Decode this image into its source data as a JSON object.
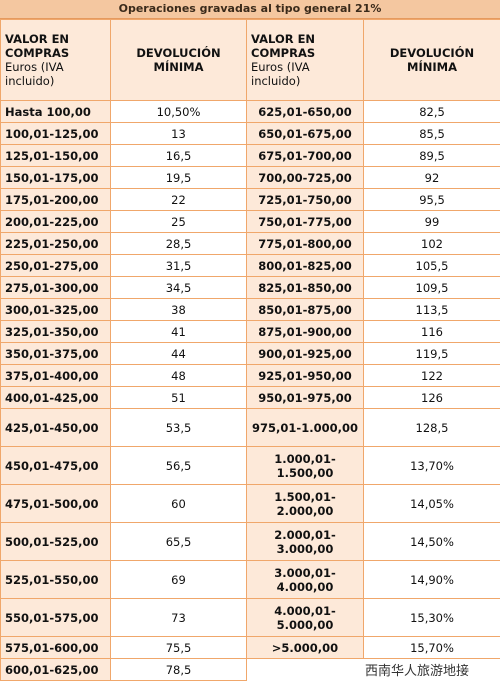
{
  "title": "Operaciones gravadas al tipo general 21%",
  "header": [
    {
      "label": "VALOR EN COMPRAS",
      "note": "Euros (IVA incluido)"
    },
    {
      "label": "DEVOLUCIÓN MÍNIMA"
    },
    {
      "label": "VALOR EN COMPRAS",
      "note": "Euros (IVA incluido)"
    },
    {
      "label": "DEVOLUCIÓN MÍNIMA"
    }
  ],
  "rows": [
    [
      "Hasta 100,00",
      "10,50%",
      "625,01-650,00",
      "82,5"
    ],
    [
      "100,01-125,00",
      "13",
      "650,01-675,00",
      "85,5"
    ],
    [
      "125,01-150,00",
      "16,5",
      "675,01-700,00",
      "89,5"
    ],
    [
      "150,01-175,00",
      "19,5",
      "700,00-725,00",
      "92"
    ],
    [
      "175,01-200,00",
      "22",
      "725,01-750,00",
      "95,5"
    ],
    [
      "200,01-225,00",
      "25",
      "750,01-775,00",
      "99"
    ],
    [
      "225,01-250,00",
      "28,5",
      "775,01-800,00",
      "102"
    ],
    [
      "250,01-275,00",
      "31,5",
      "800,01-825,00",
      "105,5"
    ],
    [
      "275,01-300,00",
      "34,5",
      "825,01-850,00",
      "109,5"
    ],
    [
      "300,01-325,00",
      "38",
      "850,01-875,00",
      "113,5"
    ],
    [
      "325,01-350,00",
      "41",
      "875,01-900,00",
      "116"
    ],
    [
      "350,01-375,00",
      "44",
      "900,01-925,00",
      "119,5"
    ],
    [
      "375,01-400,00",
      "48",
      "925,01-950,00",
      "122"
    ],
    [
      "400,01-425,00",
      "51",
      "950,01-975,00",
      "126"
    ],
    [
      "425,01-450,00",
      "53,5",
      "975,01-1.000,00",
      "128,5"
    ],
    [
      "450,01-475,00",
      "56,5",
      "1.000,01-\n1.500,00",
      "13,70%"
    ],
    [
      "475,01-500,00",
      "60",
      "1.500,01-\n2.000,00",
      "14,05%"
    ],
    [
      "500,01-525,00",
      "65,5",
      "2.000,01-\n3.000,00",
      "14,50%"
    ],
    [
      "525,01-550,00",
      "69",
      "3.000,01-\n4.000,00",
      "14,90%"
    ],
    [
      "550,01-575,00",
      "73",
      "4.000,01-\n5.000,00",
      "15,30%"
    ],
    [
      "575,01-600,00",
      "75,5",
      ">5.000,00",
      "15,70%"
    ],
    [
      "600,01-625,00",
      "78,5"
    ]
  ],
  "watermark": "西南华人旅游地接"
}
